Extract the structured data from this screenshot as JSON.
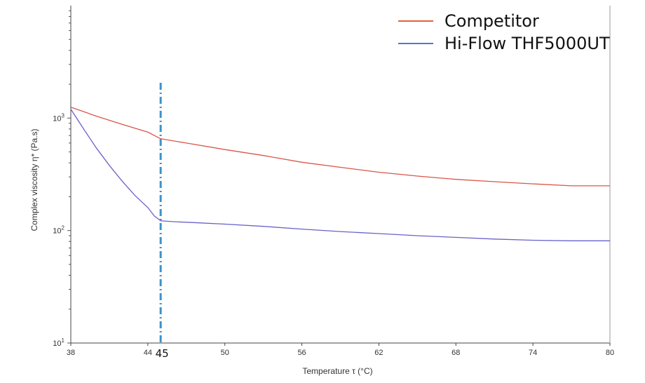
{
  "chart_data": {
    "type": "line",
    "xlabel": "Temperature τ (°C)",
    "ylabel": "Complex viscosity η* (Pa.s)",
    "x_scale": "linear",
    "y_scale": "log",
    "xlim": [
      38,
      80
    ],
    "ylim": [
      10,
      10000
    ],
    "x_ticks": [
      "38",
      "44",
      "50",
      "56",
      "62",
      "68",
      "74",
      "80"
    ],
    "y_ticks": [
      {
        "value": 10,
        "base": "10",
        "exp": "1"
      },
      {
        "value": 100,
        "base": "10",
        "exp": "2"
      },
      {
        "value": 1000,
        "base": "10",
        "exp": "3"
      }
    ],
    "annotation": {
      "x": 45,
      "label": "45",
      "style": "dash-dot",
      "color": "#3b93c9"
    },
    "legend_position": "top-right",
    "series": [
      {
        "name": "Competitor",
        "color": "#d9564a",
        "legend_color": "#e0623a",
        "x": [
          38,
          40,
          42,
          44,
          45,
          47,
          50,
          53,
          56,
          59,
          62,
          65,
          68,
          71,
          74,
          77,
          80
        ],
        "y": [
          1250,
          1040,
          880,
          750,
          655,
          600,
          525,
          465,
          405,
          365,
          330,
          305,
          285,
          272,
          260,
          250,
          250
        ]
      },
      {
        "name": "Hi-Flow THF5000UT",
        "color": "#6a62c8",
        "legend_color": "#4f79c8",
        "x": [
          38,
          39,
          40,
          41,
          42,
          43,
          44,
          44.5,
          45,
          46,
          48,
          50,
          53,
          56,
          59,
          62,
          65,
          68,
          71,
          74,
          77,
          80
        ],
        "y": [
          1200,
          800,
          540,
          380,
          275,
          205,
          160,
          135,
          122,
          120,
          117,
          114,
          109,
          103,
          98,
          94,
          90,
          87,
          84,
          82,
          81,
          81
        ]
      }
    ]
  }
}
